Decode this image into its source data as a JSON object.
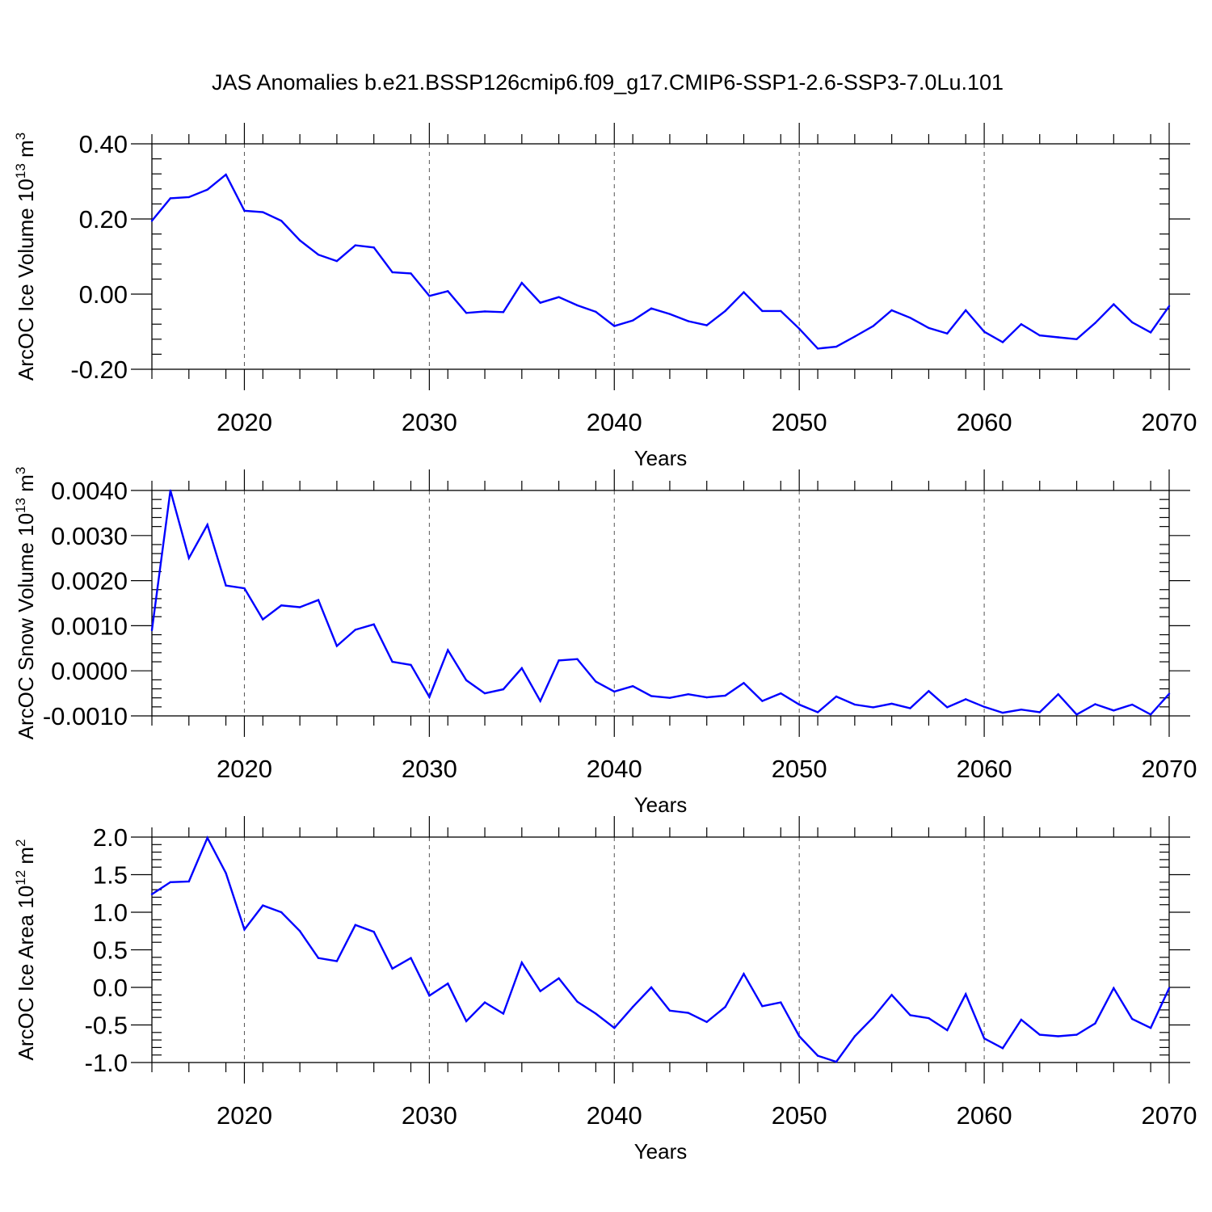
{
  "chart_data": {
    "title": "JAS Anomalies b.e21.BSSP126cmip6.f09_g17.CMIP6-SSP1-2.6-SSP3-7.0Lu.101",
    "line_color": "#0000ff",
    "panels": [
      {
        "type": "line",
        "ylabel": "ArcOC Ice Volume 10",
        "ylabel_exponent": "13",
        "ylabel_unit": "m",
        "ylabel_unit_exponent": "3",
        "xlabel": "Years",
        "xlim": [
          2015,
          2070
        ],
        "ylim": [
          -0.2,
          0.4
        ],
        "yticks": [
          -0.2,
          0.0,
          0.2,
          0.4
        ],
        "ytick_labels": [
          "-0.20",
          "0.00",
          "0.20",
          "0.40"
        ],
        "xticks": [
          2020,
          2030,
          2040,
          2050,
          2060,
          2070
        ],
        "xtick_labels": [
          "2020",
          "2030",
          "2040",
          "2050",
          "2060",
          "2070"
        ],
        "x": [
          2015,
          2016,
          2017,
          2018,
          2019,
          2020,
          2021,
          2022,
          2023,
          2024,
          2025,
          2026,
          2027,
          2028,
          2029,
          2030,
          2031,
          2032,
          2033,
          2034,
          2035,
          2036,
          2037,
          2038,
          2039,
          2040,
          2041,
          2042,
          2043,
          2044,
          2045,
          2046,
          2047,
          2048,
          2049,
          2050,
          2051,
          2052,
          2053,
          2054,
          2055,
          2056,
          2057,
          2058,
          2059,
          2060,
          2061,
          2062,
          2063,
          2064,
          2065,
          2066,
          2067,
          2068,
          2069,
          2070
        ],
        "values": [
          0.195,
          0.255,
          0.258,
          0.278,
          0.318,
          0.222,
          0.218,
          0.195,
          0.143,
          0.105,
          0.088,
          0.13,
          0.124,
          0.058,
          0.055,
          -0.005,
          0.008,
          -0.05,
          -0.046,
          -0.048,
          0.03,
          -0.023,
          -0.008,
          -0.03,
          -0.047,
          -0.085,
          -0.07,
          -0.038,
          -0.053,
          -0.072,
          -0.083,
          -0.045,
          0.005,
          -0.045,
          -0.045,
          -0.092,
          -0.145,
          -0.14,
          -0.113,
          -0.085,
          -0.043,
          -0.063,
          -0.09,
          -0.105,
          -0.043,
          -0.1,
          -0.128,
          -0.08,
          -0.11,
          -0.115,
          -0.12,
          -0.077,
          -0.027,
          -0.075,
          -0.102,
          -0.032
        ]
      },
      {
        "type": "line",
        "ylabel": "ArcOC Snow Volume 10",
        "ylabel_exponent": "13",
        "ylabel_unit": "m",
        "ylabel_unit_exponent": "3",
        "xlabel": "Years",
        "xlim": [
          2015,
          2070
        ],
        "ylim": [
          -0.001,
          0.004
        ],
        "yticks": [
          -0.001,
          0.0,
          0.001,
          0.002,
          0.003,
          0.004
        ],
        "ytick_labels": [
          "-0.0010",
          "0.0000",
          "0.0010",
          "0.0020",
          "0.0030",
          "0.0040"
        ],
        "xticks": [
          2020,
          2030,
          2040,
          2050,
          2060,
          2070
        ],
        "xtick_labels": [
          "2020",
          "2030",
          "2040",
          "2050",
          "2060",
          "2070"
        ],
        "x": [
          2015,
          2016,
          2017,
          2018,
          2019,
          2020,
          2021,
          2022,
          2023,
          2024,
          2025,
          2026,
          2027,
          2028,
          2029,
          2030,
          2031,
          2032,
          2033,
          2034,
          2035,
          2036,
          2037,
          2038,
          2039,
          2040,
          2041,
          2042,
          2043,
          2044,
          2045,
          2046,
          2047,
          2048,
          2049,
          2050,
          2051,
          2052,
          2053,
          2054,
          2055,
          2056,
          2057,
          2058,
          2059,
          2060,
          2061,
          2062,
          2063,
          2064,
          2065,
          2066,
          2067,
          2068,
          2069,
          2070
        ],
        "values": [
          0.0009,
          0.004,
          0.0025,
          0.00324,
          0.00189,
          0.00183,
          0.00114,
          0.00145,
          0.00141,
          0.00157,
          0.00055,
          0.00091,
          0.00103,
          0.0002,
          0.00013,
          -0.00058,
          0.00046,
          -0.00021,
          -0.0005,
          -0.00041,
          6e-05,
          -0.00067,
          0.00023,
          0.00026,
          -0.00024,
          -0.00046,
          -0.00034,
          -0.00056,
          -0.0006,
          -0.00052,
          -0.00059,
          -0.00055,
          -0.00027,
          -0.00067,
          -0.0005,
          -0.00075,
          -0.00092,
          -0.00057,
          -0.00075,
          -0.00081,
          -0.00073,
          -0.00083,
          -0.00045,
          -0.00081,
          -0.00063,
          -0.0008,
          -0.00093,
          -0.00086,
          -0.00092,
          -0.00052,
          -0.00097,
          -0.00074,
          -0.00088,
          -0.00075,
          -0.00097,
          -0.00051
        ]
      },
      {
        "type": "line",
        "ylabel": "ArcOC Ice Area 10",
        "ylabel_exponent": "12",
        "ylabel_unit": "m",
        "ylabel_unit_exponent": "2",
        "xlabel": "Years",
        "xlim": [
          2015,
          2070
        ],
        "ylim": [
          -1.0,
          2.0
        ],
        "yticks": [
          -1.0,
          -0.5,
          0.0,
          0.5,
          1.0,
          1.5,
          2.0
        ],
        "ytick_labels": [
          "-1.0",
          "-0.5",
          "0.0",
          "0.5",
          "1.0",
          "1.5",
          "2.0"
        ],
        "xticks": [
          2020,
          2030,
          2040,
          2050,
          2060,
          2070
        ],
        "xtick_labels": [
          "2020",
          "2030",
          "2040",
          "2050",
          "2060",
          "2070"
        ],
        "x": [
          2015,
          2016,
          2017,
          2018,
          2019,
          2020,
          2021,
          2022,
          2023,
          2024,
          2025,
          2026,
          2027,
          2028,
          2029,
          2030,
          2031,
          2032,
          2033,
          2034,
          2035,
          2036,
          2037,
          2038,
          2039,
          2040,
          2041,
          2042,
          2043,
          2044,
          2045,
          2046,
          2047,
          2048,
          2049,
          2050,
          2051,
          2052,
          2053,
          2054,
          2055,
          2056,
          2057,
          2058,
          2059,
          2060,
          2061,
          2062,
          2063,
          2064,
          2065,
          2066,
          2067,
          2068,
          2069,
          2070
        ],
        "values": [
          1.24,
          1.4,
          1.41,
          1.99,
          1.52,
          0.77,
          1.09,
          1.0,
          0.75,
          0.39,
          0.35,
          0.83,
          0.74,
          0.25,
          0.39,
          -0.11,
          0.05,
          -0.45,
          -0.2,
          -0.35,
          0.33,
          -0.05,
          0.12,
          -0.19,
          -0.35,
          -0.54,
          -0.26,
          0.0,
          -0.31,
          -0.34,
          -0.46,
          -0.26,
          0.18,
          -0.25,
          -0.2,
          -0.65,
          -0.91,
          -0.99,
          -0.65,
          -0.4,
          -0.1,
          -0.37,
          -0.41,
          -0.57,
          -0.09,
          -0.68,
          -0.81,
          -0.43,
          -0.63,
          -0.65,
          -0.63,
          -0.48,
          -0.01,
          -0.42,
          -0.54,
          -0.01
        ]
      }
    ]
  }
}
